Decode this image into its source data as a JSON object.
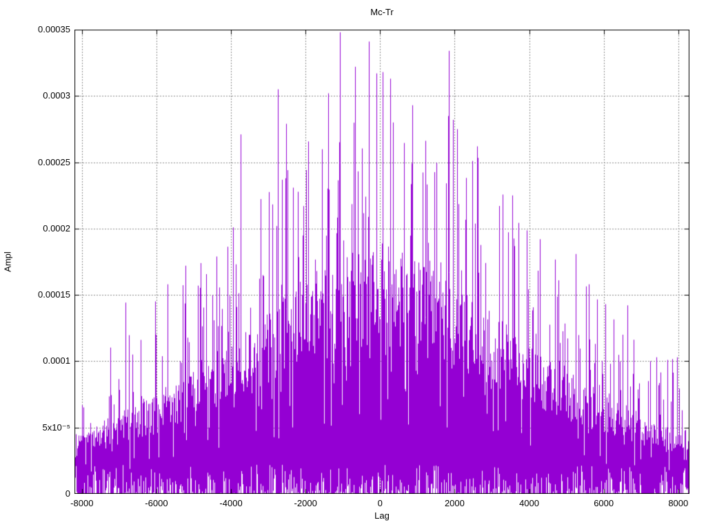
{
  "chart_data": {
    "type": "line",
    "plot_style": "dense-vertical-amplitude-spikes (gnuplot-like correlation amplitude vs lag)",
    "title": "Mc-Tr",
    "xlabel": "Lag",
    "ylabel": "Ampl",
    "xlim": [
      -8200,
      8300
    ],
    "ylim": [
      0,
      0.00035
    ],
    "xticks": {
      "values": [
        -8000,
        -6000,
        -4000,
        -2000,
        0,
        2000,
        4000,
        6000,
        8000
      ],
      "labels": [
        "-8000",
        "-6000",
        "-4000",
        "-2000",
        "0",
        "2000",
        "4000",
        "6000",
        "8000"
      ]
    },
    "yticks": {
      "values": [
        0,
        5e-05,
        0.0001,
        0.00015,
        0.0002,
        0.00025,
        0.0003,
        0.00035
      ],
      "labels": [
        "0",
        "5x10⁻⁵",
        "0.0001",
        "0.00015",
        "0.0002",
        "0.00025",
        "0.0003",
        "0.00035"
      ]
    },
    "grid": {
      "visible": true,
      "color": "#8a8a8a",
      "dash": [
        2,
        2
      ]
    },
    "series_color": "#9400D3",
    "border_color": "#000000",
    "background_color": "#ffffff",
    "envelope": {
      "comment": "piecewise-linear envelopes read from the pixels: spike_max = top of sparse spikes, mass_top = top of the dense solid purple mass",
      "lags": [
        -8200,
        -8000,
        -7000,
        -6000,
        -5000,
        -4000,
        -3000,
        -2000,
        -1500,
        -1000,
        -500,
        0,
        500,
        1000,
        1500,
        2000,
        3000,
        4000,
        5000,
        6000,
        7000,
        8000,
        8300
      ],
      "spike_max": [
        9e-05,
        0.000105,
        0.000122,
        0.000145,
        0.00017,
        0.0002,
        0.000232,
        0.000258,
        0.000268,
        0.000278,
        0.000285,
        0.000288,
        0.000285,
        0.000278,
        0.000268,
        0.000258,
        0.000232,
        0.0002,
        0.00017,
        0.000145,
        0.000122,
        0.000105,
        9.2e-05
      ],
      "mass_top": [
        3.2e-05,
        3.8e-05,
        5e-05,
        6.2e-05,
        7.6e-05,
        9.4e-05,
        0.000113,
        0.00013,
        0.000138,
        0.000146,
        0.000152,
        0.000156,
        0.000152,
        0.000146,
        0.000138,
        0.00013,
        0.000113,
        9.4e-05,
        7.6e-05,
        6.2e-05,
        5e-05,
        3.8e-05,
        3.3e-05
      ],
      "noise_floor_gap_max": 2.2e-05
    },
    "peaks": [
      [
        -5700,
        0.000158
      ],
      [
        -5220,
        0.000172
      ],
      [
        -4810,
        0.000174
      ],
      [
        -4100,
        0.000186
      ],
      [
        -3750,
        0.000271
      ],
      [
        -2750,
        0.000305
      ],
      [
        -2530,
        0.000279
      ],
      [
        -1400,
        0.000302
      ],
      [
        -1070,
        0.000348
      ],
      [
        -680,
        0.000322
      ],
      [
        -295,
        0.000341
      ],
      [
        -90,
        0.000317
      ],
      [
        70,
        0.000318
      ],
      [
        280,
        0.000313
      ],
      [
        350,
        0.00028
      ],
      [
        870,
        0.000293
      ],
      [
        1850,
        0.000334
      ],
      [
        1960,
        0.000282
      ],
      [
        2070,
        0.000275
      ],
      [
        2480,
        0.000251
      ],
      [
        2600,
        0.000262
      ],
      [
        3550,
        0.000225
      ],
      [
        4290,
        0.000192
      ],
      [
        4790,
        0.000161
      ],
      [
        5600,
        0.000158
      ],
      [
        6050,
        0.000143
      ],
      [
        6500,
        0.00012
      ],
      [
        7420,
        0.000103
      ]
    ],
    "seed": 7
  }
}
